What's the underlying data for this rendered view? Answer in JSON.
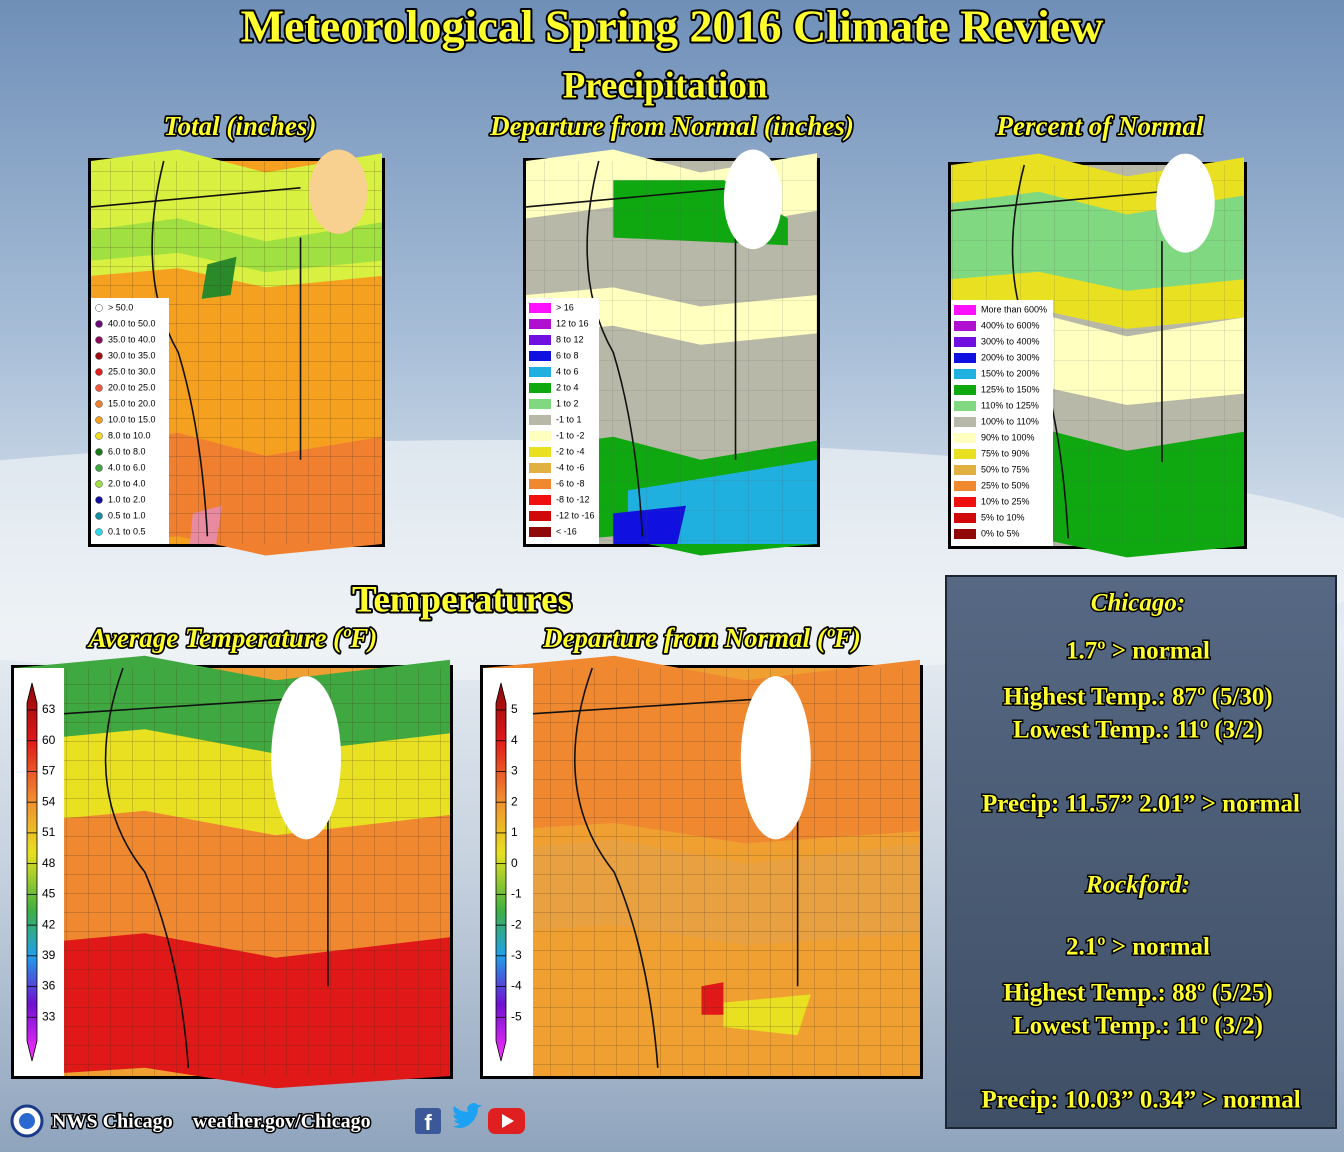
{
  "title": "Meteorological Spring 2016 Climate Review",
  "precipitation": {
    "heading": "Precipitation",
    "panels": [
      {
        "title": "Total (inches)",
        "legend": [
          {
            "label": "> 50.0",
            "color": "#ffffff"
          },
          {
            "label": "40.0 to 50.0",
            "color": "#6a0c78"
          },
          {
            "label": "35.0 to 40.0",
            "color": "#8e0c5c"
          },
          {
            "label": "30.0 to 35.0",
            "color": "#a00c10"
          },
          {
            "label": "25.0 to 30.0",
            "color": "#e0201c"
          },
          {
            "label": "20.0 to 25.0",
            "color": "#f05a3a"
          },
          {
            "label": "15.0 to 20.0",
            "color": "#f08030"
          },
          {
            "label": "10.0 to 15.0",
            "color": "#f6a020"
          },
          {
            "label": "8.0 to 10.0",
            "color": "#f0e020"
          },
          {
            "label": "6.0 to 8.0",
            "color": "#1a7a1a"
          },
          {
            "label": "4.0 to 6.0",
            "color": "#40a840"
          },
          {
            "label": "2.0 to 4.0",
            "color": "#a0e040"
          },
          {
            "label": "1.0 to 2.0",
            "color": "#1010a0"
          },
          {
            "label": "0.5 to 1.0",
            "color": "#1090a0"
          },
          {
            "label": "0.1 to 0.5",
            "color": "#30d8e8"
          }
        ]
      },
      {
        "title": "Departure from Normal (inches)",
        "legend": [
          {
            "label": "> 16",
            "color": "#ff10ff"
          },
          {
            "label": "12 to 16",
            "color": "#b010d0"
          },
          {
            "label": "8 to 12",
            "color": "#7010e0"
          },
          {
            "label": "6 to 8",
            "color": "#1010e0"
          },
          {
            "label": "4 to 6",
            "color": "#20b0e0"
          },
          {
            "label": "2 to 4",
            "color": "#10a810"
          },
          {
            "label": "1 to 2",
            "color": "#80d880"
          },
          {
            "label": "-1 to 1",
            "color": "#b8b8a8"
          },
          {
            "label": "-1 to -2",
            "color": "#ffffc0"
          },
          {
            "label": "-2 to -4",
            "color": "#e8e020"
          },
          {
            "label": "-4 to -6",
            "color": "#e0b040"
          },
          {
            "label": "-6 to -8",
            "color": "#f08830"
          },
          {
            "label": "-8 to -12",
            "color": "#f01010"
          },
          {
            "label": "-12 to -16",
            "color": "#d00808"
          },
          {
            "label": "< -16",
            "color": "#900808"
          }
        ]
      },
      {
        "title": "Percent of Normal",
        "legend": [
          {
            "label": "More than 600%",
            "color": "#ff10ff"
          },
          {
            "label": "400% to 600%",
            "color": "#b010d0"
          },
          {
            "label": "300% to 400%",
            "color": "#7010e0"
          },
          {
            "label": "200% to 300%",
            "color": "#1010e0"
          },
          {
            "label": "150% to 200%",
            "color": "#20b0e0"
          },
          {
            "label": "125% to 150%",
            "color": "#10a810"
          },
          {
            "label": "110% to 125%",
            "color": "#80d880"
          },
          {
            "label": "100% to 110%",
            "color": "#b8b8a8"
          },
          {
            "label": "90% to 100%",
            "color": "#ffffc0"
          },
          {
            "label": "75% to 90%",
            "color": "#e8e020"
          },
          {
            "label": "50% to 75%",
            "color": "#e0b040"
          },
          {
            "label": "25% to 50%",
            "color": "#f08830"
          },
          {
            "label": "10% to 25%",
            "color": "#f01010"
          },
          {
            "label": "5% to 10%",
            "color": "#d00808"
          },
          {
            "label": "0% to 5%",
            "color": "#900808"
          }
        ]
      }
    ]
  },
  "temperatures": {
    "heading": "Temperatures",
    "panels": [
      {
        "title": "Average Temperature (ºF)",
        "ticks": [
          63,
          60,
          57,
          54,
          51,
          48,
          45,
          42,
          39,
          36,
          33
        ]
      },
      {
        "title": "Departure from Normal (ºF)",
        "ticks": [
          5,
          4,
          3,
          2,
          1,
          0,
          -1,
          -2,
          -3,
          -4,
          -5
        ]
      }
    ]
  },
  "stations": [
    {
      "name": "Chicago:",
      "departure": "1.7º > normal",
      "highest": "Highest Temp.:  87º (5/30)",
      "lowest": "Lowest Temp.:  11º (3/2)",
      "precip": "Precip: 11.57”  2.01” > normal"
    },
    {
      "name": "Rockford:",
      "departure": "2.1º > normal",
      "highest": "Highest Temp.:  88º (5/25)",
      "lowest": "Lowest Temp.:  11º (3/2)",
      "precip": "Precip: 10.03”  0.34” > normal"
    }
  ],
  "footer": {
    "office": "NWS Chicago",
    "url": "weather.gov/Chicago"
  }
}
